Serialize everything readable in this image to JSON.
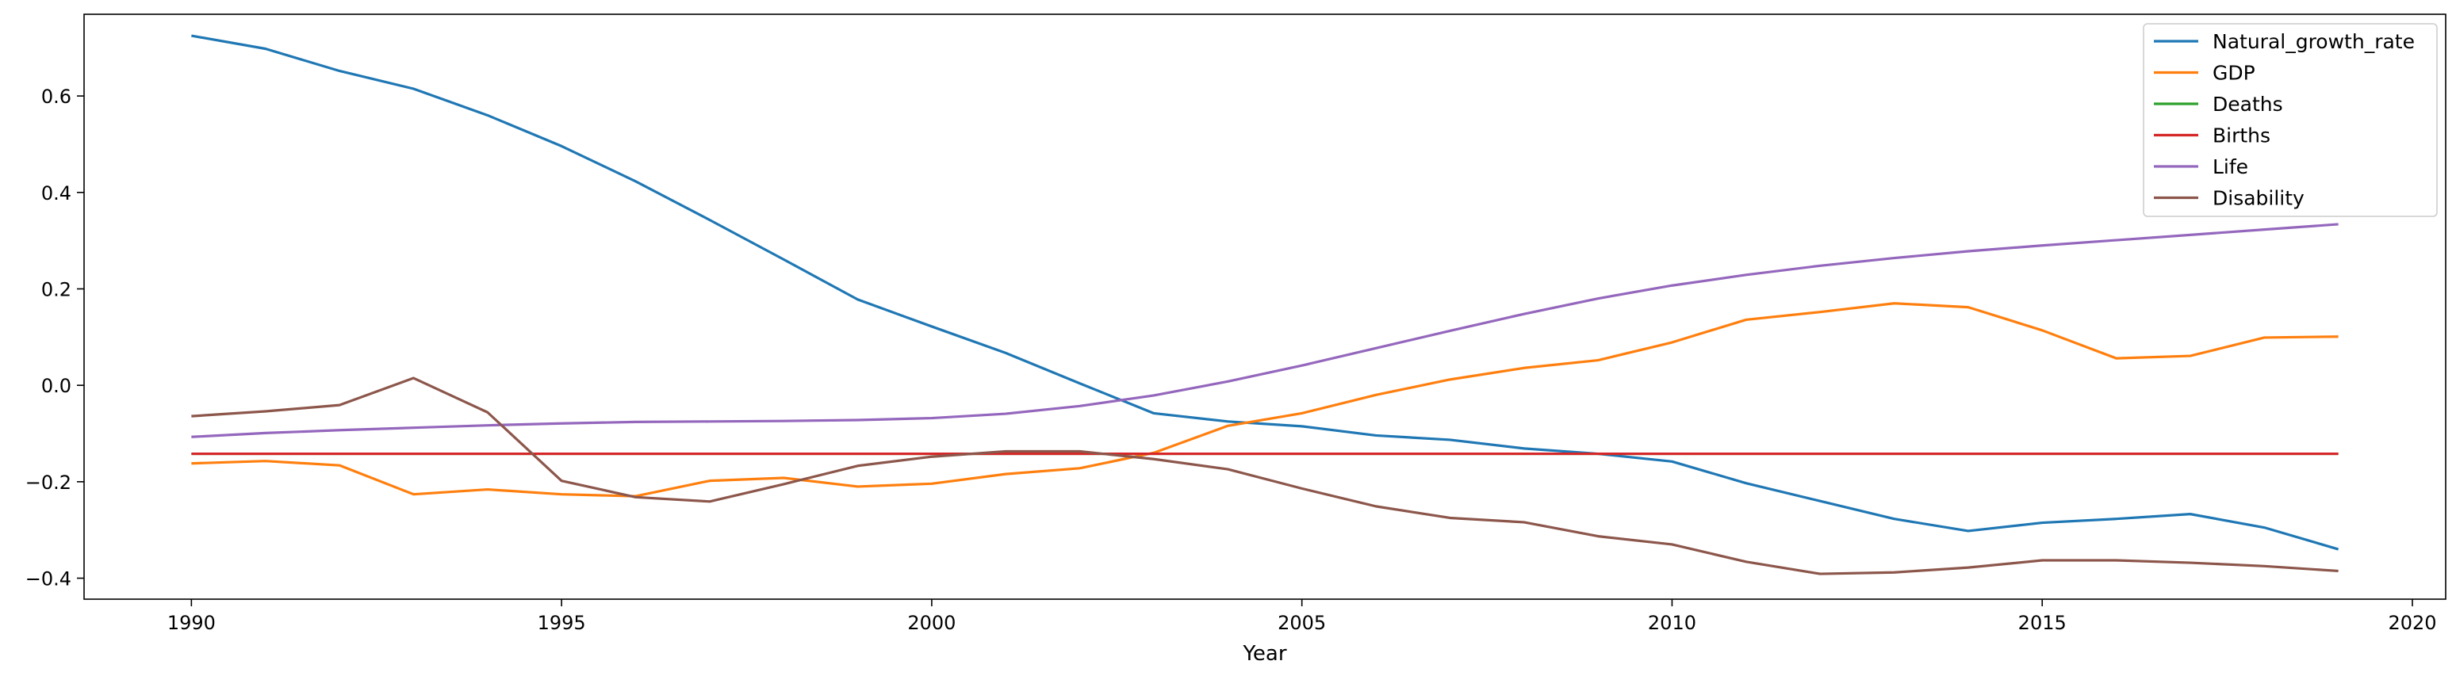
{
  "chart_data": {
    "type": "line",
    "title": "",
    "xlabel": "Year",
    "ylabel": "",
    "xlim": [
      1988.55,
      2020.45
    ],
    "ylim": [
      -0.4435,
      0.7695
    ],
    "xticks": [
      1990,
      1995,
      2000,
      2005,
      2010,
      2015,
      2020
    ],
    "yticks": [
      -0.4,
      -0.2,
      0.0,
      0.2,
      0.4,
      0.6
    ],
    "ytick_labels": [
      "−0.4",
      "−0.2",
      "0.0",
      "0.2",
      "0.4",
      "0.6"
    ],
    "grid": false,
    "legend_position": "top-right",
    "x": [
      1990,
      1991,
      1992,
      1993,
      1994,
      1995,
      1996,
      1997,
      1998,
      1999,
      2000,
      2001,
      2002,
      2003,
      2004,
      2005,
      2006,
      2007,
      2008,
      2009,
      2010,
      2011,
      2012,
      2013,
      2014,
      2015,
      2016,
      2017,
      2018,
      2019
    ],
    "series": [
      {
        "name": "Natural_growth_rate",
        "color": "#1f77b4",
        "values": [
          0.725,
          0.698,
          0.652,
          0.615,
          0.56,
          0.496,
          0.423,
          0.343,
          0.261,
          0.178,
          0.122,
          0.067,
          0.004,
          -0.058,
          -0.075,
          -0.085,
          -0.104,
          -0.113,
          -0.131,
          -0.142,
          -0.158,
          -0.203,
          -0.24,
          -0.277,
          -0.302,
          -0.285,
          -0.277,
          -0.267,
          -0.295,
          -0.34
        ]
      },
      {
        "name": "GDP",
        "color": "#ff7f0e",
        "values": [
          -0.162,
          -0.157,
          -0.166,
          -0.226,
          -0.216,
          -0.226,
          -0.23,
          -0.198,
          -0.192,
          -0.21,
          -0.204,
          -0.184,
          -0.172,
          -0.14,
          -0.084,
          -0.058,
          -0.02,
          0.012,
          0.036,
          0.052,
          0.089,
          0.136,
          0.152,
          0.17,
          0.162,
          0.114,
          0.056,
          0.061,
          0.099,
          0.101
        ]
      },
      {
        "name": "Deaths",
        "color": "#2ca02c",
        "values": [
          -0.142,
          -0.142,
          -0.142,
          -0.142,
          -0.142,
          -0.142,
          -0.142,
          -0.142,
          -0.142,
          -0.142,
          -0.142,
          -0.142,
          -0.142,
          -0.142,
          -0.142,
          -0.142,
          -0.142,
          -0.142,
          -0.142,
          -0.142,
          -0.142,
          -0.142,
          -0.142,
          -0.142,
          -0.142,
          -0.142,
          -0.142,
          -0.142,
          -0.142,
          -0.142
        ]
      },
      {
        "name": "Births",
        "color": "#d62728",
        "values": [
          -0.142,
          -0.142,
          -0.142,
          -0.142,
          -0.142,
          -0.142,
          -0.142,
          -0.142,
          -0.142,
          -0.142,
          -0.142,
          -0.142,
          -0.142,
          -0.142,
          -0.142,
          -0.142,
          -0.142,
          -0.142,
          -0.142,
          -0.142,
          -0.142,
          -0.142,
          -0.142,
          -0.142,
          -0.142,
          -0.142,
          -0.142,
          -0.142,
          -0.142,
          -0.142
        ]
      },
      {
        "name": "Life",
        "color": "#9467bd",
        "values": [
          -0.107,
          -0.099,
          -0.093,
          -0.088,
          -0.083,
          -0.079,
          -0.076,
          -0.075,
          -0.074,
          -0.072,
          -0.068,
          -0.059,
          -0.043,
          -0.021,
          0.008,
          0.041,
          0.077,
          0.113,
          0.148,
          0.18,
          0.207,
          0.229,
          0.248,
          0.264,
          0.278,
          0.29,
          0.301,
          0.312,
          0.323,
          0.334
        ]
      },
      {
        "name": "Disability",
        "color": "#8c564b",
        "values": [
          -0.064,
          -0.054,
          -0.041,
          0.015,
          -0.056,
          -0.198,
          -0.232,
          -0.241,
          -0.205,
          -0.167,
          -0.148,
          -0.137,
          -0.137,
          -0.153,
          -0.174,
          -0.214,
          -0.251,
          -0.275,
          -0.284,
          -0.313,
          -0.33,
          -0.366,
          -0.391,
          -0.388,
          -0.378,
          -0.363,
          -0.363,
          -0.368,
          -0.375,
          -0.385
        ]
      }
    ]
  }
}
